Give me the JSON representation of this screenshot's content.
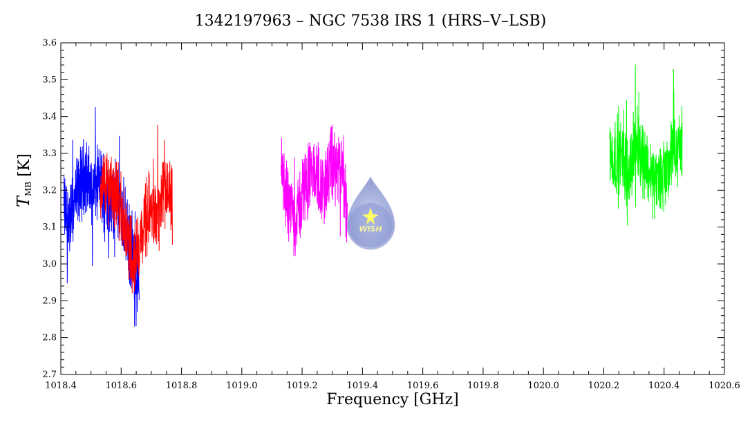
{
  "chart_data": {
    "type": "line",
    "title": "1342197963 – NGC 7538 IRS 1 (HRS–V–LSB)",
    "xlabel": "Frequency [GHz]",
    "ylabel": {
      "symbol": "T",
      "subscript": "MB",
      "unit": "[K]"
    },
    "xlim": [
      1018.4,
      1020.6
    ],
    "ylim": [
      2.7,
      3.6
    ],
    "x_ticks": [
      "1018.4",
      "1018.6",
      "1018.8",
      "1019.0",
      "1019.2",
      "1019.4",
      "1019.6",
      "1019.8",
      "1020.0",
      "1020.2",
      "1020.4",
      "1020.6"
    ],
    "y_ticks": [
      "2.7",
      "2.8",
      "2.9",
      "3.0",
      "3.1",
      "3.2",
      "3.3",
      "3.4",
      "3.5",
      "3.6"
    ],
    "grid": false,
    "logo_text": "WISH",
    "series": [
      {
        "color": "#0000ff",
        "x_range": [
          1018.41,
          1018.66
        ],
        "baseline": 3.19,
        "y_min": 2.81,
        "y_max": 3.47,
        "anchors": [
          [
            1018.41,
            3.15
          ],
          [
            1018.43,
            3.12
          ],
          [
            1018.45,
            3.18
          ],
          [
            1018.48,
            3.25
          ],
          [
            1018.5,
            3.2
          ],
          [
            1018.53,
            3.22
          ],
          [
            1018.56,
            3.18
          ],
          [
            1018.59,
            3.17
          ],
          [
            1018.62,
            3.08
          ],
          [
            1018.64,
            3.0
          ],
          [
            1018.66,
            2.95
          ]
        ]
      },
      {
        "color": "#ff0000",
        "x_range": [
          1018.53,
          1018.77
        ],
        "baseline": 3.15,
        "y_min": 2.84,
        "y_max": 3.44,
        "anchors": [
          [
            1018.53,
            3.2
          ],
          [
            1018.56,
            3.22
          ],
          [
            1018.59,
            3.18
          ],
          [
            1018.62,
            3.08
          ],
          [
            1018.64,
            3.0
          ],
          [
            1018.66,
            3.05
          ],
          [
            1018.69,
            3.15
          ],
          [
            1018.72,
            3.12
          ],
          [
            1018.75,
            3.2
          ],
          [
            1018.77,
            3.15
          ]
        ]
      },
      {
        "color": "#ff00ff",
        "x_range": [
          1019.13,
          1019.35
        ],
        "baseline": 3.22,
        "y_min": 2.91,
        "y_max": 3.52,
        "anchors": [
          [
            1019.13,
            3.25
          ],
          [
            1019.15,
            3.18
          ],
          [
            1019.18,
            3.12
          ],
          [
            1019.21,
            3.22
          ],
          [
            1019.24,
            3.25
          ],
          [
            1019.27,
            3.2
          ],
          [
            1019.3,
            3.27
          ],
          [
            1019.33,
            3.25
          ],
          [
            1019.35,
            3.15
          ]
        ]
      },
      {
        "color": "#00ff00",
        "x_range": [
          1020.22,
          1020.46
        ],
        "baseline": 3.27,
        "y_min": 3.03,
        "y_max": 3.55,
        "anchors": [
          [
            1020.22,
            3.28
          ],
          [
            1020.25,
            3.3
          ],
          [
            1020.28,
            3.25
          ],
          [
            1020.31,
            3.33
          ],
          [
            1020.34,
            3.27
          ],
          [
            1020.37,
            3.22
          ],
          [
            1020.4,
            3.25
          ],
          [
            1020.43,
            3.3
          ],
          [
            1020.46,
            3.32
          ]
        ]
      }
    ]
  }
}
